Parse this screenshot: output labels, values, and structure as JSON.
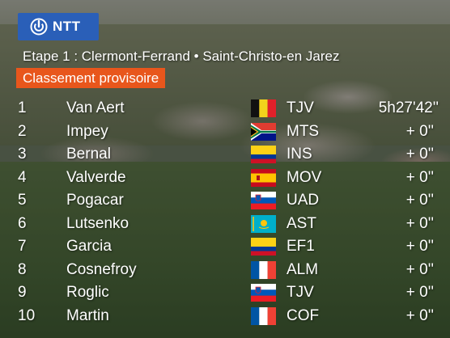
{
  "broadcast": {
    "logo_text": "NTT",
    "stage_title": "Etape 1 : Clermont-Ferrand • Saint-Christo-en Jarez",
    "section_label": "Classement provisoire"
  },
  "colors": {
    "logo_bg": "#2a5fb8",
    "section_bg": "#e8561c"
  },
  "standings": [
    {
      "pos": "1",
      "rider": "Van Aert",
      "flag": "belgium-flag",
      "team": "TJV",
      "time": "5h27'42''"
    },
    {
      "pos": "2",
      "rider": "Impey",
      "flag": "south-africa-flag",
      "team": "MTS",
      "time": "+ 0''"
    },
    {
      "pos": "3",
      "rider": "Bernal",
      "flag": "colombia-flag",
      "team": "INS",
      "time": "+ 0''"
    },
    {
      "pos": "4",
      "rider": "Valverde",
      "flag": "spain-flag",
      "team": "MOV",
      "time": "+ 0''"
    },
    {
      "pos": "5",
      "rider": "Pogacar",
      "flag": "slovenia-flag",
      "team": "UAD",
      "time": "+ 0''"
    },
    {
      "pos": "6",
      "rider": "Lutsenko",
      "flag": "kazakhstan-flag",
      "team": "AST",
      "time": "+ 0''"
    },
    {
      "pos": "7",
      "rider": "Garcia",
      "flag": "colombia-flag",
      "team": "EF1",
      "time": "+ 0''"
    },
    {
      "pos": "8",
      "rider": "Cosnefroy",
      "flag": "france-flag",
      "team": "ALM",
      "time": "+ 0''"
    },
    {
      "pos": "9",
      "rider": "Roglic",
      "flag": "slovenia-flag",
      "team": "TJV",
      "time": "+ 0''"
    },
    {
      "pos": "10",
      "rider": "Martin",
      "flag": "france-flag",
      "team": "COF",
      "time": "+ 0''"
    }
  ]
}
